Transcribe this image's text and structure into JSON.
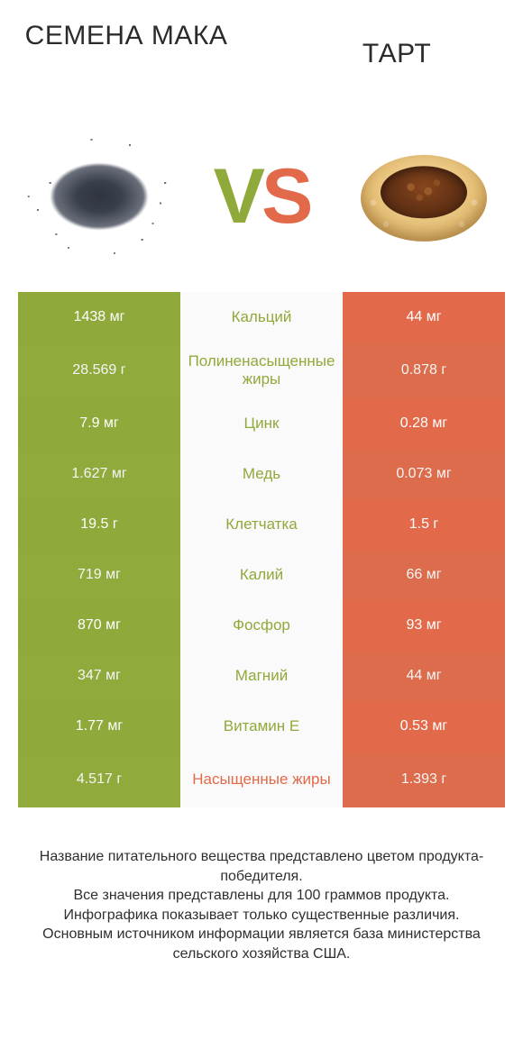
{
  "header": {
    "left_title": "Семена мака",
    "right_title": "Тарт"
  },
  "vs": {
    "text_v": "V",
    "text_s": "S",
    "color_v": "#8fa93a",
    "color_s": "#e26a4a"
  },
  "colors": {
    "left_bar": "#8fa93a",
    "left_bar_alt": "#97b13e",
    "right_bar": "#e26a4a",
    "right_bar_alt": "#e6714f",
    "mid_bg": "#fafafa",
    "winner_left_text": "#8fa93a",
    "winner_right_text": "#e26a4a"
  },
  "rows": [
    {
      "label": "Кальций",
      "left": "1438 мг",
      "right": "44 мг",
      "winner": "left",
      "tall": false
    },
    {
      "label": "Полиненасыщенные жиры",
      "left": "28.569 г",
      "right": "0.878 г",
      "winner": "left",
      "tall": true
    },
    {
      "label": "Цинк",
      "left": "7.9 мг",
      "right": "0.28 мг",
      "winner": "left",
      "tall": false
    },
    {
      "label": "Медь",
      "left": "1.627 мг",
      "right": "0.073 мг",
      "winner": "left",
      "tall": false
    },
    {
      "label": "Клетчатка",
      "left": "19.5 г",
      "right": "1.5 г",
      "winner": "left",
      "tall": false
    },
    {
      "label": "Калий",
      "left": "719 мг",
      "right": "66 мг",
      "winner": "left",
      "tall": false
    },
    {
      "label": "Фосфор",
      "left": "870 мг",
      "right": "93 мг",
      "winner": "left",
      "tall": false
    },
    {
      "label": "Магний",
      "left": "347 мг",
      "right": "44 мг",
      "winner": "left",
      "tall": false
    },
    {
      "label": "Витамин E",
      "left": "1.77 мг",
      "right": "0.53 мг",
      "winner": "left",
      "tall": false
    },
    {
      "label": "Насыщенные жиры",
      "left": "4.517 г",
      "right": "1.393 г",
      "winner": "right",
      "tall": true
    }
  ],
  "footer": {
    "line1": "Название питательного вещества представлено цветом продукта-победителя.",
    "line2": "Все значения представлены для 100 граммов продукта.",
    "line3": "Инфографика показывает только существенные различия.",
    "line4": "Основным источником информации является база министерства сельского хозяйства США."
  },
  "style": {
    "font_family": "Arial",
    "title_fontsize": 30,
    "vs_fontsize": 86,
    "row_fontsize": 16,
    "label_fontsize": 17,
    "footer_fontsize": 16,
    "background": "#ffffff"
  }
}
